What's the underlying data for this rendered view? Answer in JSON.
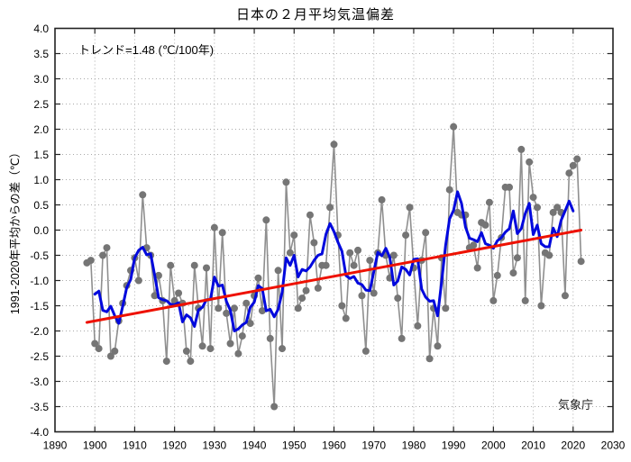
{
  "page": {
    "title": "日本の２月平均気温偏差"
  },
  "chart_data": {
    "type": "line",
    "title": "日本の２月平均気温偏差",
    "annotation": "トレンド=1.48 (℃/100年)",
    "ylabel": "1991-2020年平均からの差（℃）",
    "source": "気象庁",
    "grid": true,
    "legend_position": "none",
    "x_axis": {
      "min": 1890,
      "max": 2030,
      "tick_step": 10
    },
    "y_axis": {
      "min": -4.0,
      "max": 4.0,
      "tick_step": 0.5,
      "label_decimals": 1
    },
    "start_year": 1898,
    "series": [
      {
        "name": "各年の平均気温偏差",
        "style": "dots+line",
        "line_color": "#8f8f8f",
        "dot_color": "#757575",
        "values": [
          -0.65,
          -0.6,
          -2.25,
          -2.35,
          -0.5,
          -0.35,
          -2.5,
          -2.4,
          -1.8,
          -1.45,
          -1.1,
          -0.8,
          -0.55,
          -1.0,
          0.7,
          -0.35,
          -0.5,
          -1.3,
          -0.9,
          -1.4,
          -2.6,
          -0.7,
          -1.4,
          -1.25,
          -1.45,
          -2.4,
          -2.6,
          -0.7,
          -1.55,
          -2.3,
          -0.75,
          -2.35,
          0.05,
          -1.55,
          -0.05,
          -1.65,
          -2.25,
          -1.55,
          -2.45,
          -2.1,
          -1.45,
          -1.85,
          -1.3,
          -0.95,
          -1.6,
          0.2,
          -2.15,
          -3.5,
          -0.8,
          -2.35,
          0.95,
          -0.45,
          -0.1,
          -1.55,
          -1.35,
          -1.2,
          0.3,
          -0.25,
          -1.15,
          -0.7,
          -0.7,
          0.45,
          1.7,
          -0.1,
          -1.5,
          -1.75,
          -0.45,
          -0.7,
          -0.4,
          -1.3,
          -2.4,
          -0.6,
          -1.25,
          -0.45,
          0.6,
          -0.5,
          -0.95,
          -0.5,
          -1.35,
          -2.15,
          -0.1,
          0.45,
          -0.75,
          -1.9,
          -0.6,
          -0.05,
          -2.55,
          -1.55,
          -2.3,
          -0.55,
          -1.55,
          0.8,
          2.05,
          0.35,
          0.3,
          0.3,
          -0.35,
          -0.3,
          -0.75,
          0.15,
          0.1,
          0.55,
          -1.4,
          -0.9,
          -0.15,
          0.85,
          0.85,
          -0.85,
          -0.55,
          1.6,
          -1.4,
          1.35,
          0.65,
          0.45,
          -1.5,
          -0.45,
          -0.5,
          0.35,
          0.45,
          0.35,
          -1.3,
          1.13,
          1.28,
          1.41,
          -0.62
        ]
      },
      {
        "name": "5年移動平均",
        "style": "line",
        "derived": "moving_average_5",
        "color": "#0008dd"
      },
      {
        "name": "長期変化傾向（トレンド）",
        "style": "line",
        "color": "#ee1100",
        "trend": {
          "start_year": 1898,
          "start_value": -1.83,
          "end_year": 2022,
          "end_value": 0.0
        }
      }
    ]
  }
}
